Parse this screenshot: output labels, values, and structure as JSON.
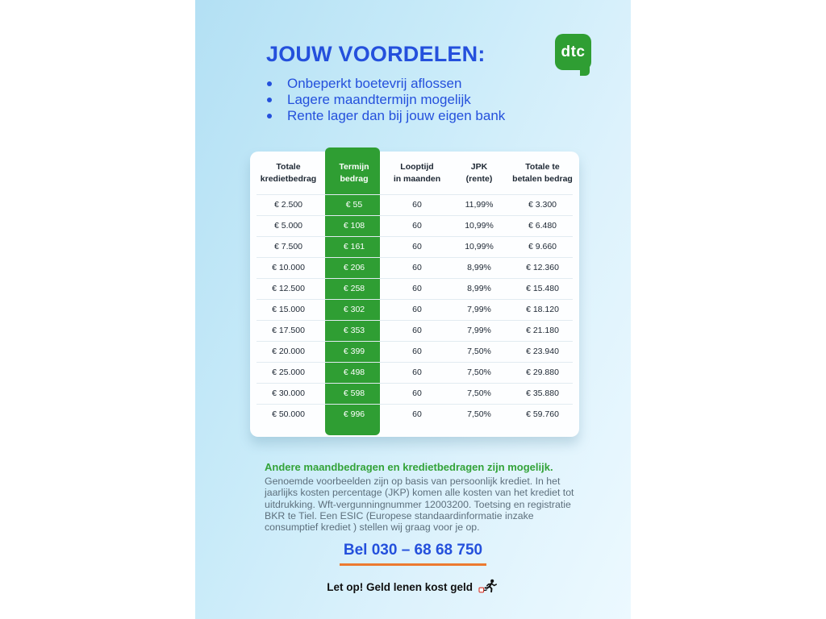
{
  "page": {
    "background": "#ffffff",
    "panel_gradient_start": "#b3e0f4",
    "panel_gradient_end": "#ecf9ff",
    "accent_blue": "#2450dc",
    "accent_green": "#2f9e33",
    "accent_orange": "#ec7a30"
  },
  "header": {
    "title": "JOUW VOORDELEN:",
    "bullets": [
      "Onbeperkt boetevrij aflossen",
      "Lagere maandtermijn mogelijk",
      "Rente lager dan bij jouw eigen bank"
    ],
    "logo_text": "dtc"
  },
  "table": {
    "columns": [
      {
        "line1": "Totale",
        "line2": "kredietbedrag"
      },
      {
        "line1": "Termijn",
        "line2": "bedrag"
      },
      {
        "line1": "Looptijd",
        "line2": "in maanden"
      },
      {
        "line1": "JPK",
        "line2": "(rente)"
      },
      {
        "line1": "Totale te",
        "line2": "betalen bedrag"
      }
    ],
    "rows": [
      [
        "€ 2.500",
        "€ 55",
        "60",
        "11,99%",
        "€ 3.300"
      ],
      [
        "€ 5.000",
        "€ 108",
        "60",
        "10,99%",
        "€ 6.480"
      ],
      [
        "€ 7.500",
        "€ 161",
        "60",
        "10,99%",
        "€ 9.660"
      ],
      [
        "€ 10.000",
        "€ 206",
        "60",
        "8,99%",
        "€ 12.360"
      ],
      [
        "€ 12.500",
        "€ 258",
        "60",
        "8,99%",
        "€ 15.480"
      ],
      [
        "€ 15.000",
        "€ 302",
        "60",
        "7,99%",
        "€ 18.120"
      ],
      [
        "€ 17.500",
        "€ 353",
        "60",
        "7,99%",
        "€ 21.180"
      ],
      [
        "€ 20.000",
        "€ 399",
        "60",
        "7,50%",
        "€ 23.940"
      ],
      [
        "€ 25.000",
        "€ 498",
        "60",
        "7,50%",
        "€ 29.880"
      ],
      [
        "€ 30.000",
        "€ 598",
        "60",
        "7,50%",
        "€ 35.880"
      ],
      [
        "€ 50.000",
        "€ 996",
        "60",
        "7,50%",
        "€ 59.760"
      ]
    ]
  },
  "notes": {
    "heading": "Andere maandbedragen en kredietbedragen zijn mogelijk.",
    "body": "Genoemde voorbeelden zijn op basis van persoonlijk krediet. In het jaarlijks kosten percentage (JKP) komen alle kosten van het krediet tot uitdrukking. Wft-vergunningnummer 12003200. Toetsing en registratie BKR te Tiel. Een ESIC (Europese standaardinformatie inzake consumptief krediet ) stellen wij graag voor je op."
  },
  "contact": {
    "phone_label": "Bel 030 – 68 68 750"
  },
  "warning": {
    "text": "Let op! Geld lenen kost geld"
  },
  "icons": {
    "runner": "running-man-with-euro-weight-icon"
  }
}
